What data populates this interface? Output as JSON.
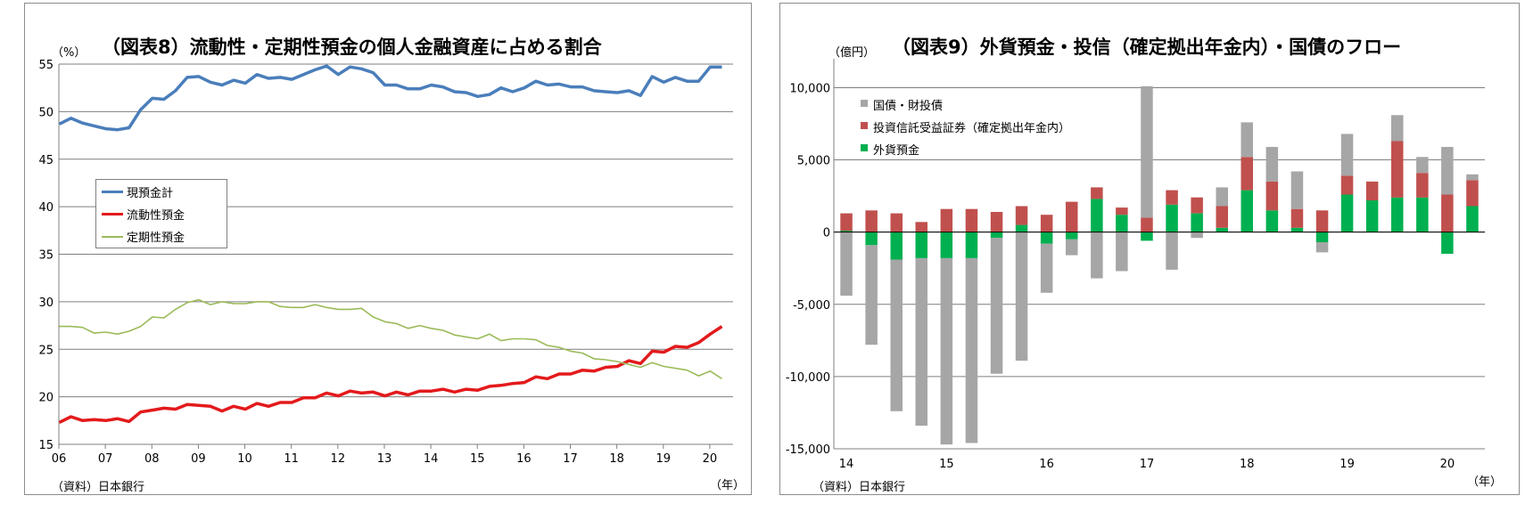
{
  "left_chart": {
    "title": "（図表8）流動性・定期性預金の個人金融資産に占める割合",
    "unit": "（%）",
    "source": "（資料）日本銀行",
    "year_unit": "（年）"
  },
  "right_chart": {
    "title": "（図表9）外貨預金・投信（確定拠出年金内）・国債のフロー",
    "unit": "（億円）",
    "source": "（資料）日本銀行",
    "year_unit": "（年）"
  },
  "colors": {
    "cash_total": "#4a7ebb",
    "liquid": "#e31a1c",
    "time_deposit": "#9bbb59",
    "jgb": "#a6a6a6",
    "inv_trust": "#c0504d",
    "fx_deposit": "#00b050",
    "grid": "#7f7f7f"
  },
  "chart_data": [
    {
      "type": "line",
      "title": "（図表8）流動性・定期性預金の個人金融資産に占める割合",
      "ylabel": "（%）",
      "xlabel": "（年）",
      "ylim": [
        15,
        55
      ],
      "yticks": [
        15,
        20,
        25,
        30,
        35,
        40,
        45,
        50,
        55
      ],
      "xticks": [
        "06",
        "07",
        "08",
        "09",
        "10",
        "11",
        "12",
        "13",
        "14",
        "15",
        "16",
        "17",
        "18",
        "19",
        "20"
      ],
      "x_start": "2006Q1",
      "frequency": "quarterly",
      "grid": true,
      "legend_position": "left-middle",
      "series": [
        {
          "name": "現預金計",
          "values": [
            48.7,
            49.3,
            48.8,
            48.5,
            48.2,
            48.1,
            48.3,
            50.2,
            51.4,
            51.3,
            52.2,
            53.6,
            53.7,
            53.1,
            52.8,
            53.3,
            53.0,
            53.9,
            53.5,
            53.6,
            53.4,
            53.9,
            54.4,
            54.8,
            53.9,
            54.7,
            54.5,
            54.1,
            52.8,
            52.8,
            52.4,
            52.4,
            52.8,
            52.6,
            52.1,
            52.0,
            51.6,
            51.8,
            52.5,
            52.1,
            52.5,
            53.2,
            52.8,
            52.9,
            52.6,
            52.6,
            52.2,
            52.1,
            52.0,
            52.2,
            51.7,
            53.7,
            53.1,
            53.6,
            53.2,
            53.2,
            54.7,
            54.7
          ]
        },
        {
          "name": "流動性預金",
          "values": [
            17.3,
            17.9,
            17.5,
            17.6,
            17.5,
            17.7,
            17.4,
            18.4,
            18.6,
            18.8,
            18.7,
            19.2,
            19.1,
            19.0,
            18.5,
            19.0,
            18.7,
            19.3,
            19.0,
            19.4,
            19.4,
            19.9,
            19.9,
            20.4,
            20.1,
            20.6,
            20.4,
            20.5,
            20.1,
            20.5,
            20.2,
            20.6,
            20.6,
            20.8,
            20.5,
            20.8,
            20.7,
            21.1,
            21.2,
            21.4,
            21.5,
            22.1,
            21.9,
            22.4,
            22.4,
            22.8,
            22.7,
            23.1,
            23.2,
            23.8,
            23.5,
            24.8,
            24.7,
            25.3,
            25.2,
            25.7,
            26.6,
            27.4
          ]
        },
        {
          "name": "定期性預金",
          "values": [
            27.4,
            27.4,
            27.3,
            26.7,
            26.8,
            26.6,
            26.9,
            27.4,
            28.4,
            28.3,
            29.2,
            29.9,
            30.2,
            29.7,
            30.0,
            29.8,
            29.8,
            30.0,
            30.0,
            29.5,
            29.4,
            29.4,
            29.7,
            29.4,
            29.2,
            29.2,
            29.3,
            28.4,
            27.9,
            27.7,
            27.2,
            27.5,
            27.2,
            27.0,
            26.5,
            26.3,
            26.1,
            26.6,
            25.9,
            26.1,
            26.1,
            26.0,
            25.4,
            25.2,
            24.8,
            24.6,
            24.0,
            23.9,
            23.7,
            23.4,
            23.1,
            23.6,
            23.2,
            23.0,
            22.8,
            22.2,
            22.7,
            21.9
          ]
        }
      ]
    },
    {
      "type": "bar",
      "title": "（図表9）外貨預金・投信（確定拠出年金内）・国債のフロー",
      "ylabel": "（億円）",
      "xlabel": "（年）",
      "ylim": [
        -15000,
        12000
      ],
      "yticks": [
        -15000,
        -10000,
        -5000,
        0,
        5000,
        10000
      ],
      "ytick_labels": [
        "-15,000",
        "-10,000",
        "-5,000",
        "0",
        "5,000",
        "10,000"
      ],
      "xticks": [
        "14",
        "15",
        "16",
        "17",
        "18",
        "19",
        "20"
      ],
      "x_start": "2014Q1",
      "frequency": "quarterly",
      "stacked": true,
      "grid": true,
      "legend_position": "top-left",
      "series": [
        {
          "name": "国債・財投債",
          "values": [
            -4400,
            -6900,
            -10500,
            -11600,
            -12900,
            -12800,
            -9400,
            -8900,
            -3400,
            -1100,
            -3200,
            -2700,
            9100,
            -2600,
            -400,
            1300,
            2400,
            2400,
            2600,
            -700,
            2900,
            0,
            1800,
            1100,
            3300,
            400
          ]
        },
        {
          "name": "投資信託受益証券（確定拠出年金内）",
          "values": [
            1200,
            1500,
            1300,
            700,
            1600,
            1600,
            1400,
            1300,
            1200,
            2100,
            800,
            500,
            1000,
            1000,
            1100,
            1500,
            2300,
            2000,
            1300,
            1500,
            1300,
            1300,
            3900,
            1700,
            2600,
            1800
          ]
        },
        {
          "name": "外貨預金",
          "values": [
            100,
            -900,
            -1900,
            -1800,
            -1800,
            -1800,
            -400,
            500,
            -800,
            -500,
            2300,
            1200,
            -600,
            1900,
            1300,
            300,
            2900,
            1500,
            300,
            -700,
            2600,
            2200,
            2400,
            2400,
            -1500,
            1800
          ]
        }
      ]
    }
  ]
}
